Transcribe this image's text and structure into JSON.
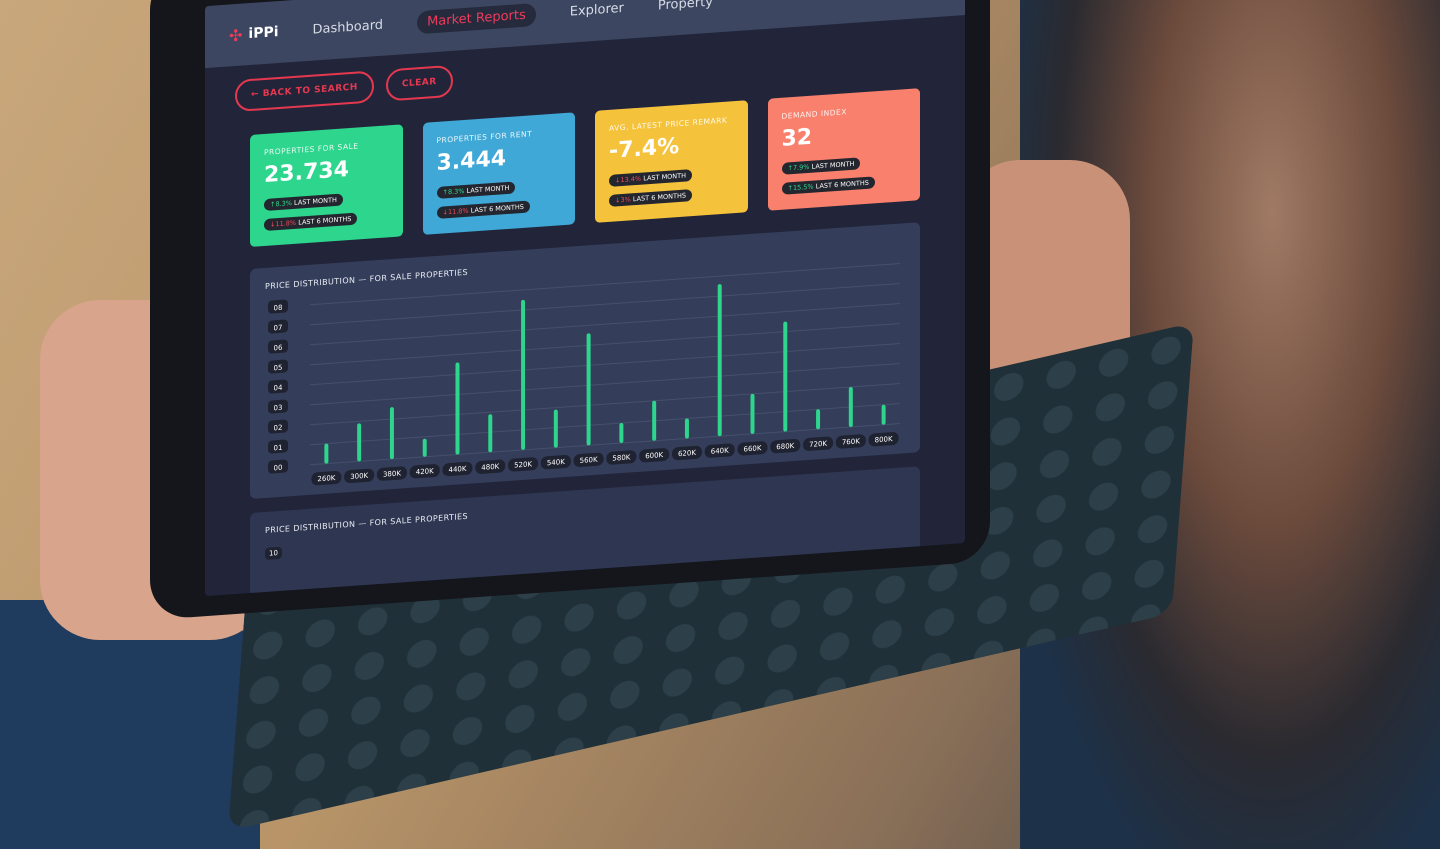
{
  "nav": {
    "brand": "iPPi",
    "items": [
      "Dashboard",
      "Market Reports",
      "Explorer",
      "Property"
    ],
    "active": "Market Reports"
  },
  "actions": {
    "back": "BACK TO SEARCH",
    "clear": "CLEAR"
  },
  "cards": [
    {
      "title": "PROPERTIES FOR SALE",
      "value": "23.734",
      "color": "#2dd58d",
      "m1": {
        "dir": "up",
        "value": "8.3%",
        "label": "LAST MONTH"
      },
      "m6": {
        "dir": "down",
        "value": "11.8%",
        "label": "LAST 6 MONTHS"
      }
    },
    {
      "title": "PROPERTIES FOR RENT",
      "value": "3.444",
      "color": "#3fa8d6",
      "m1": {
        "dir": "up",
        "value": "8.3%",
        "label": "LAST MONTH"
      },
      "m6": {
        "dir": "down",
        "value": "11.8%",
        "label": "LAST 6 MONTHS"
      }
    },
    {
      "title": "AVG. LATEST PRICE REMARK",
      "value": "-7.4%",
      "color": "#f5c23c",
      "m1": {
        "dir": "down",
        "value": "13.4%",
        "label": "LAST MONTH"
      },
      "m6": {
        "dir": "down",
        "value": "3%",
        "label": "LAST 6 MONTHS"
      }
    },
    {
      "title": "DEMAND INDEX",
      "value": "32",
      "color": "#f9806c",
      "m1": {
        "dir": "up",
        "value": "7.9%",
        "label": "LAST MONTH"
      },
      "m6": {
        "dir": "up",
        "value": "15.5%",
        "label": "LAST 6 MONTHS"
      }
    }
  ],
  "chart_data": {
    "type": "bar",
    "title": "PRICE DISTRIBUTION — FOR SALE PROPERTIES",
    "categories": [
      "260K",
      "300K",
      "380K",
      "420K",
      "440K",
      "480K",
      "520K",
      "540K",
      "560K",
      "580K",
      "600K",
      "620K",
      "640K",
      "660K",
      "680K",
      "720K",
      "760K",
      "800K"
    ],
    "values": [
      1.0,
      1.9,
      2.6,
      0.9,
      4.6,
      1.9,
      7.5,
      1.9,
      5.6,
      1.0,
      2.0,
      1.0,
      7.6,
      2.0,
      5.5,
      1.0,
      2.0,
      1.0
    ],
    "yticks": [
      "00",
      "01",
      "02",
      "03",
      "04",
      "05",
      "06",
      "07",
      "08"
    ],
    "ylim": [
      0,
      8
    ],
    "grid": true,
    "bar_color": "#2dd58d",
    "xlabel": "",
    "ylabel": ""
  },
  "second_panel": {
    "title": "PRICE DISTRIBUTION — FOR SALE PROPERTIES",
    "ytick": "10"
  }
}
